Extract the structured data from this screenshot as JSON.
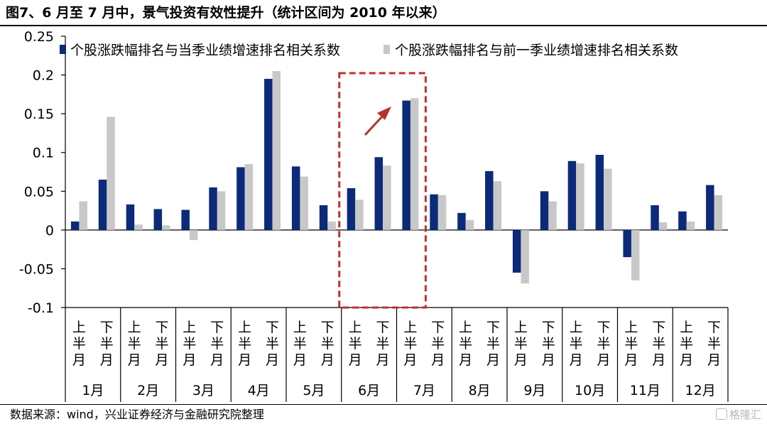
{
  "title": "图7、6 月至 7 月中，景气投资有效性提升（统计区间为 2010 年以来）",
  "source": "数据来源：wind，兴业证券经济与金融研究院整理",
  "watermark": "格隆汇",
  "colors": {
    "series1": "#0b2a7a",
    "series2": "#c8c8c8",
    "highlight_box": "#c0302b",
    "arrow": "#b2342b",
    "axis": "#000000"
  },
  "chart_data": {
    "type": "bar",
    "title": "",
    "xlabel": "",
    "ylabel": "",
    "ylim": [
      -0.1,
      0.25
    ],
    "y_ticks": [
      -0.1,
      -0.05,
      0,
      0.05,
      0.1,
      0.15,
      0.2,
      0.25
    ],
    "y_tick_labels": [
      "-0.1",
      "-0.05",
      "0",
      "0.05",
      "0.1",
      "0.15",
      "0.2",
      "0.25"
    ],
    "grid": false,
    "legend_position": "top",
    "months": [
      "1月",
      "2月",
      "3月",
      "4月",
      "5月",
      "6月",
      "7月",
      "8月",
      "9月",
      "10月",
      "11月",
      "12月"
    ],
    "halves": [
      "上半月",
      "下半月"
    ],
    "categories": [
      "1月上半月",
      "1月下半月",
      "2月上半月",
      "2月下半月",
      "3月上半月",
      "3月下半月",
      "4月上半月",
      "4月下半月",
      "5月上半月",
      "5月下半月",
      "6月上半月",
      "6月下半月",
      "7月上半月",
      "7月下半月",
      "8月上半月",
      "8月下半月",
      "9月上半月",
      "9月下半月",
      "10月上半月",
      "10月下半月",
      "11月上半月",
      "11月下半月",
      "12月上半月",
      "12月下半月"
    ],
    "series": [
      {
        "name": "个股涨跌幅排名与当季业绩增速排名相关系数",
        "color": "#0b2a7a",
        "values": [
          0.011,
          0.065,
          0.033,
          0.027,
          0.026,
          0.055,
          0.081,
          0.195,
          0.082,
          0.032,
          0.054,
          0.094,
          0.167,
          0.046,
          0.022,
          0.076,
          -0.055,
          0.05,
          0.089,
          0.097,
          -0.035,
          0.032,
          0.024,
          0.058
        ]
      },
      {
        "name": "个股涨跌幅排名与前一季业绩增速排名相关系数",
        "color": "#c8c8c8",
        "values": [
          0.037,
          0.146,
          0.007,
          0.006,
          -0.013,
          0.05,
          0.085,
          0.205,
          0.069,
          0.011,
          0.039,
          0.083,
          0.17,
          0.045,
          0.013,
          0.063,
          -0.069,
          0.037,
          0.086,
          0.079,
          -0.065,
          0.01,
          0.011,
          0.045
        ]
      }
    ],
    "highlight": {
      "from_category": "6月上半月",
      "to_category": "7月上半月",
      "style": "dashed box with upward arrow"
    }
  }
}
